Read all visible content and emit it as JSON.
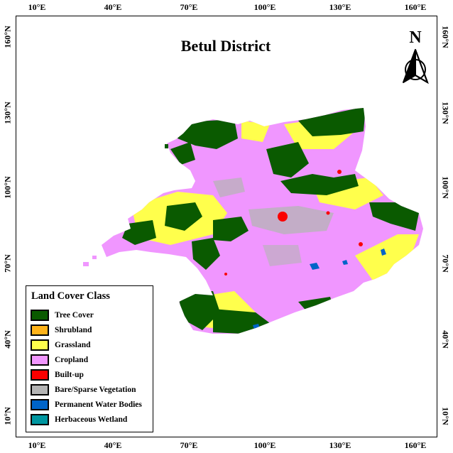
{
  "map": {
    "title": "Betul District",
    "north_label": "N",
    "longitude_ticks": [
      "10°E",
      "40°E",
      "70°E",
      "100°E",
      "130°E",
      "160°E"
    ],
    "latitude_ticks": [
      "160°N",
      "130°N",
      "100°N",
      "70°N",
      "40°N",
      "10°N"
    ]
  },
  "legend": {
    "title": "Land Cover Class",
    "items": [
      {
        "label": "Tree Cover",
        "color": "#0a5a00"
      },
      {
        "label": "Shrubland",
        "color": "#ffb31a"
      },
      {
        "label": "Grassland",
        "color": "#ffff4c"
      },
      {
        "label": "Cropland",
        "color": "#f096ff"
      },
      {
        "label": "Built-up",
        "color": "#fa0000"
      },
      {
        "label": "Bare/Sparse Vegetation",
        "color": "#b4b4b4"
      },
      {
        "label": "Permanent Water Bodies",
        "color": "#0064c8"
      },
      {
        "label": "Herbaceous Wetland",
        "color": "#0096a0"
      }
    ]
  },
  "colors": {
    "tree": "#0a5a00",
    "grass": "#ffff4c",
    "crop": "#f096ff",
    "built": "#fa0000",
    "bare": "#b4b4b4",
    "water": "#0064c8"
  }
}
